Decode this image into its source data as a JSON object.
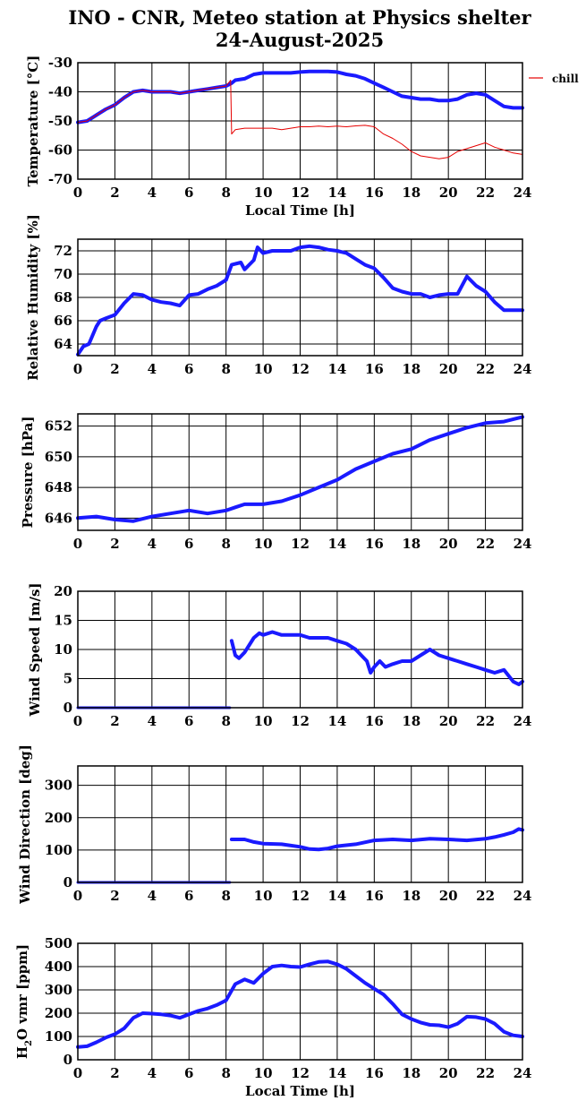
{
  "title_line1": "INO - CNR, Meteo station at Physics shelter",
  "title_line2": "24-August-2025",
  "chart_data": [
    {
      "type": "line",
      "ylabel": "Temperature [°C]",
      "xlabel": "Local Time [h]",
      "xlim": [
        0,
        24
      ],
      "ylim": [
        -70,
        -30
      ],
      "xticks": [
        0,
        2,
        4,
        6,
        8,
        10,
        12,
        14,
        16,
        18,
        20,
        22,
        24
      ],
      "yticks": [
        -70,
        -60,
        -50,
        -40,
        -30
      ],
      "grid": true,
      "legend_position": "right",
      "series": [
        {
          "color": "#1a1aff",
          "line_width": 4,
          "x": [
            0,
            0.5,
            1,
            1.5,
            2,
            2.5,
            3,
            3.5,
            4,
            4.5,
            5,
            5.5,
            6,
            6.5,
            7,
            7.5,
            8,
            8.3,
            8.5,
            9,
            9.5,
            10,
            10.5,
            11,
            11.5,
            12,
            12.5,
            13,
            13.5,
            14,
            14.5,
            15,
            15.5,
            16,
            16.5,
            17,
            17.5,
            18,
            18.5,
            19,
            19.5,
            20,
            20.5,
            21,
            21.5,
            22,
            22.5,
            23,
            23.5,
            24
          ],
          "y": [
            -50.5,
            -50,
            -48,
            -46,
            -44.5,
            -42,
            -40,
            -39.5,
            -40,
            -40,
            -40,
            -40.5,
            -40,
            -39.5,
            -39,
            -38.5,
            -38,
            -37,
            -36,
            -35.5,
            -34,
            -33.5,
            -33.5,
            -33.5,
            -33.5,
            -33.2,
            -33,
            -33,
            -33,
            -33.2,
            -34,
            -34.5,
            -35.5,
            -37,
            -38.5,
            -40,
            -41.5,
            -42,
            -42.5,
            -42.5,
            -43,
            -43,
            -42.5,
            -41,
            -40.5,
            -41,
            -43,
            -45,
            -45.5,
            -45.5
          ]
        },
        {
          "name": "chill",
          "color": "#e60000",
          "line_width": 1,
          "x": [
            0,
            0.5,
            1,
            1.5,
            2,
            2.5,
            3,
            3.5,
            4,
            4.5,
            5,
            5.5,
            6,
            6.5,
            7,
            7.5,
            8,
            8.25,
            8.3,
            8.5,
            9,
            9.5,
            10,
            10.5,
            11,
            11.5,
            12,
            12.5,
            13,
            13.5,
            14,
            14.5,
            15,
            15.5,
            16,
            16.5,
            17,
            17.5,
            18,
            18.5,
            19,
            19.5,
            20,
            20.5,
            21,
            21.5,
            22,
            22.5,
            23,
            23.5,
            24
          ],
          "y": [
            -50.5,
            -50,
            -48,
            -46,
            -44.5,
            -42,
            -40,
            -39.5,
            -40,
            -40,
            -40,
            -40.5,
            -40,
            -39.5,
            -39,
            -38.5,
            -38,
            -36,
            -54.5,
            -53,
            -52.5,
            -52.5,
            -52.5,
            -52.5,
            -53,
            -52.5,
            -52,
            -52,
            -51.8,
            -52,
            -51.8,
            -52,
            -51.7,
            -51.5,
            -52,
            -54.5,
            -56,
            -58,
            -60.5,
            -62,
            -62.5,
            -63,
            -62.5,
            -60.5,
            -59.5,
            -58.5,
            -57.5,
            -59,
            -60,
            -61,
            -61.5
          ]
        }
      ]
    },
    {
      "type": "line",
      "ylabel": "Relative Humidity [%]",
      "xlim": [
        0,
        24
      ],
      "ylim": [
        63,
        73
      ],
      "xticks": [
        0,
        2,
        4,
        6,
        8,
        10,
        12,
        14,
        16,
        18,
        20,
        22,
        24
      ],
      "yticks": [
        64,
        66,
        68,
        70,
        72
      ],
      "grid": true,
      "series": [
        {
          "color": "#1a1aff",
          "line_width": 4,
          "x": [
            0,
            0.3,
            0.6,
            1,
            1.2,
            1.5,
            2,
            2.5,
            3,
            3.5,
            4,
            4.5,
            5,
            5.5,
            6,
            6.5,
            7,
            7.5,
            8,
            8.3,
            8.8,
            9,
            9.5,
            9.7,
            10,
            10.5,
            11,
            11.5,
            12,
            12.5,
            13,
            13.5,
            14,
            14.5,
            15,
            15.5,
            16,
            16.5,
            17,
            17.5,
            18,
            18.5,
            19,
            19.5,
            20,
            20.5,
            21,
            21.5,
            22,
            22.5,
            23,
            23.5,
            24
          ],
          "y": [
            63.1,
            63.8,
            64,
            65.5,
            66,
            66.2,
            66.5,
            67.5,
            68.3,
            68.2,
            67.8,
            67.6,
            67.5,
            67.3,
            68.2,
            68.3,
            68.7,
            69,
            69.5,
            70.8,
            71,
            70.4,
            71.2,
            72.3,
            71.8,
            72,
            72,
            72,
            72.3,
            72.4,
            72.3,
            72.1,
            72,
            71.8,
            71.3,
            70.8,
            70.5,
            69.7,
            68.8,
            68.5,
            68.3,
            68.3,
            68,
            68.2,
            68.3,
            68.3,
            69.8,
            69,
            68.5,
            67.6,
            66.9,
            66.9,
            66.9
          ]
        }
      ]
    },
    {
      "type": "line",
      "ylabel": "Pressure [hPa]",
      "xlim": [
        0,
        24
      ],
      "ylim": [
        645.2,
        652.8
      ],
      "xticks": [
        0,
        2,
        4,
        6,
        8,
        10,
        12,
        14,
        16,
        18,
        20,
        22,
        24
      ],
      "yticks": [
        646,
        648,
        650,
        652
      ],
      "grid": true,
      "series": [
        {
          "color": "#1a1aff",
          "line_width": 4,
          "x": [
            0,
            1,
            2,
            3,
            4,
            5,
            6,
            7,
            8,
            8.5,
            9,
            10,
            11,
            12,
            13,
            14,
            15,
            16,
            17,
            18,
            19,
            20,
            21,
            22,
            23,
            24
          ],
          "y": [
            646,
            646.1,
            645.9,
            645.8,
            646.1,
            646.3,
            646.5,
            646.3,
            646.5,
            646.7,
            646.9,
            646.9,
            647.1,
            647.5,
            648,
            648.5,
            649.2,
            649.7,
            650.2,
            650.5,
            651.1,
            651.5,
            651.9,
            652.2,
            652.3,
            652.6
          ]
        }
      ]
    },
    {
      "type": "line",
      "ylabel": "Wind Speed [m/s]",
      "xlim": [
        0,
        24
      ],
      "ylim": [
        0,
        20
      ],
      "xticks": [
        0,
        2,
        4,
        6,
        8,
        10,
        12,
        14,
        16,
        18,
        20,
        22,
        24
      ],
      "yticks": [
        0,
        5,
        10,
        15,
        20
      ],
      "grid": true,
      "series": [
        {
          "color": "#1a1aff",
          "line_width": 3,
          "x": [
            0,
            8.2
          ],
          "y": [
            0,
            0
          ]
        },
        {
          "color": "#1a1aff",
          "line_width": 4,
          "x": [
            8.3,
            8.5,
            8.7,
            9,
            9.3,
            9.5,
            9.8,
            10,
            10.5,
            11,
            11.5,
            12,
            12.5,
            13,
            13.5,
            14,
            14.5,
            15,
            15.3,
            15.6,
            15.8,
            16,
            16.3,
            16.6,
            17,
            17.5,
            18,
            18.5,
            19,
            19.5,
            20,
            20.5,
            21,
            21.5,
            22,
            22.5,
            23,
            23.5,
            23.8,
            24
          ],
          "y": [
            11.5,
            9,
            8.5,
            9.5,
            11,
            12,
            12.8,
            12.5,
            13,
            12.5,
            12.5,
            12.5,
            12,
            12,
            12,
            11.5,
            11,
            10,
            9,
            8,
            6,
            7,
            8,
            7,
            7.5,
            8,
            8,
            9,
            10,
            9,
            8.5,
            8,
            7.5,
            7,
            6.5,
            6,
            6.5,
            4.5,
            4,
            4.5
          ]
        }
      ]
    },
    {
      "type": "line",
      "ylabel": "Wind Direction [deg]",
      "xlim": [
        0,
        24
      ],
      "ylim": [
        0,
        360
      ],
      "xticks": [
        0,
        2,
        4,
        6,
        8,
        10,
        12,
        14,
        16,
        18,
        20,
        22,
        24
      ],
      "yticks": [
        0,
        100,
        200,
        300
      ],
      "grid": true,
      "series": [
        {
          "color": "#1a1aff",
          "line_width": 3,
          "x": [
            0,
            8.2
          ],
          "y": [
            0,
            0
          ]
        },
        {
          "color": "#1a1aff",
          "line_width": 4,
          "x": [
            8.3,
            9,
            9.5,
            10,
            11,
            12,
            12.5,
            13,
            13.5,
            14,
            15,
            16,
            17,
            18,
            19,
            20,
            21,
            22,
            22.5,
            23,
            23.5,
            23.8,
            24
          ],
          "y": [
            133,
            133,
            125,
            120,
            118,
            110,
            103,
            102,
            105,
            112,
            118,
            130,
            133,
            130,
            135,
            133,
            130,
            135,
            140,
            147,
            155,
            165,
            162
          ]
        }
      ]
    },
    {
      "type": "line",
      "ylabel_main": "H",
      "ylabel_sub": "2",
      "ylabel_rest": "O vmr [ppm]",
      "xlabel": "Local Time [h]",
      "xlim": [
        0,
        24
      ],
      "ylim": [
        0,
        500
      ],
      "xticks": [
        0,
        2,
        4,
        6,
        8,
        10,
        12,
        14,
        16,
        18,
        20,
        22,
        24
      ],
      "yticks": [
        0,
        100,
        200,
        300,
        400,
        500
      ],
      "grid": true,
      "series": [
        {
          "color": "#1a1aff",
          "line_width": 4,
          "x": [
            0,
            0.5,
            1,
            1.5,
            2,
            2.5,
            3,
            3.5,
            4,
            4.5,
            5,
            5.5,
            6,
            6.5,
            7,
            7.5,
            8,
            8.5,
            9,
            9.5,
            10,
            10.5,
            11,
            11.5,
            12,
            12.5,
            13,
            13.5,
            14,
            14.5,
            15,
            15.5,
            16,
            16.5,
            17,
            17.5,
            18,
            18.5,
            19,
            19.5,
            20,
            20.5,
            21,
            21.5,
            22,
            22.5,
            23,
            23.5,
            24
          ],
          "y": [
            55,
            58,
            75,
            95,
            110,
            135,
            180,
            200,
            198,
            195,
            190,
            180,
            195,
            210,
            220,
            235,
            255,
            325,
            345,
            330,
            370,
            400,
            405,
            400,
            398,
            410,
            420,
            422,
            410,
            390,
            360,
            330,
            305,
            280,
            240,
            195,
            175,
            160,
            150,
            148,
            140,
            155,
            185,
            183,
            175,
            155,
            120,
            105,
            100
          ]
        }
      ]
    }
  ]
}
